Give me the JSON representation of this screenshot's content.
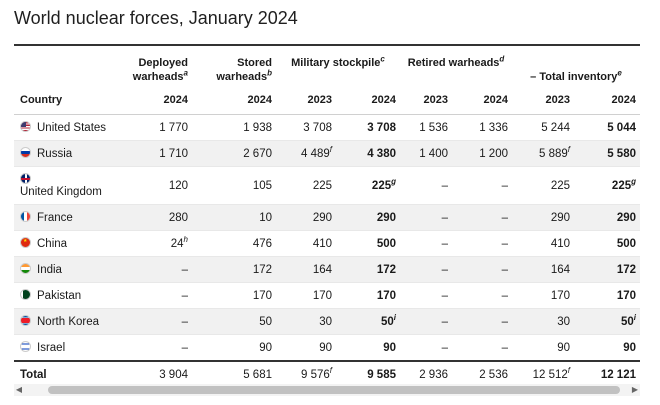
{
  "title": "World nuclear forces, January 2024",
  "headers": {
    "deployed": "Deployed warheads",
    "deployed_note": "a",
    "stored": "Stored warheads",
    "stored_note": "b",
    "military": "Military stockpile",
    "military_note": "c",
    "retired": "Retired warheads",
    "retired_note": "d",
    "total": "Total inventory",
    "total_note": "e",
    "country": "Country",
    "years": [
      "2024",
      "2024",
      "2023",
      "2024",
      "2023",
      "2024",
      "2023",
      "2024"
    ]
  },
  "rows": [
    {
      "country": "United States",
      "flag": "us-flag-icon",
      "deployed": "1 770",
      "stored": "1 938",
      "mil2023": "3 708",
      "mil2024": "3 708",
      "ret2023": "1 536",
      "ret2024": "1 336",
      "tot2023": "5 244",
      "tot2024": "5 044"
    },
    {
      "country": "Russia",
      "flag": "russia-flag-icon",
      "deployed": "1 710",
      "stored": "2 670",
      "mil2023": "4 489",
      "mil2023_note": "f",
      "mil2024": "4 380",
      "ret2023": "1 400",
      "ret2024": "1 200",
      "tot2023": "5 889",
      "tot2023_note": "f",
      "tot2024": "5 580"
    },
    {
      "country": "United Kingdom",
      "flag": "uk-flag-icon",
      "deployed": "120",
      "stored": "105",
      "mil2023": "225",
      "mil2024": "225",
      "mil2024_note": "g",
      "ret2023": "–",
      "ret2024": "–",
      "tot2023": "225",
      "tot2024": "225",
      "tot2024_note": "g"
    },
    {
      "country": "France",
      "flag": "france-flag-icon",
      "deployed": "280",
      "stored": "10",
      "mil2023": "290",
      "mil2024": "290",
      "ret2023": "–",
      "ret2024": "–",
      "tot2023": "290",
      "tot2024": "290"
    },
    {
      "country": "China",
      "flag": "china-flag-icon",
      "deployed": "24",
      "deployed_note": "h",
      "stored": "476",
      "mil2023": "410",
      "mil2024": "500",
      "ret2023": "–",
      "ret2024": "–",
      "tot2023": "410",
      "tot2024": "500"
    },
    {
      "country": "India",
      "flag": "india-flag-icon",
      "deployed": "–",
      "stored": "172",
      "mil2023": "164",
      "mil2024": "172",
      "ret2023": "–",
      "ret2024": "–",
      "tot2023": "164",
      "tot2024": "172"
    },
    {
      "country": "Pakistan",
      "flag": "pakistan-flag-icon",
      "deployed": "–",
      "stored": "170",
      "mil2023": "170",
      "mil2024": "170",
      "ret2023": "–",
      "ret2024": "–",
      "tot2023": "170",
      "tot2024": "170"
    },
    {
      "country": "North Korea",
      "flag": "north-korea-flag-icon",
      "deployed": "–",
      "stored": "50",
      "mil2023": "30",
      "mil2024": "50",
      "mil2024_note": "i",
      "ret2023": "–",
      "ret2024": "–",
      "tot2023": "30",
      "tot2024": "50",
      "tot2024_note": "i"
    },
    {
      "country": "Israel",
      "flag": "israel-flag-icon",
      "deployed": "–",
      "stored": "90",
      "mil2023": "90",
      "mil2024": "90",
      "ret2023": "–",
      "ret2024": "–",
      "tot2023": "90",
      "tot2024": "90"
    }
  ],
  "total": {
    "label": "Total",
    "deployed": "3 904",
    "stored": "5 681",
    "mil2023": "9 576",
    "mil2023_note": "f",
    "mil2024": "9 585",
    "ret2023": "2 936",
    "ret2024": "2 536",
    "tot2023": "12 512",
    "tot2023_note": "f",
    "tot2024": "12 121"
  },
  "scrollbar": {
    "left_arrow": "◀",
    "right_arrow": "▶"
  }
}
